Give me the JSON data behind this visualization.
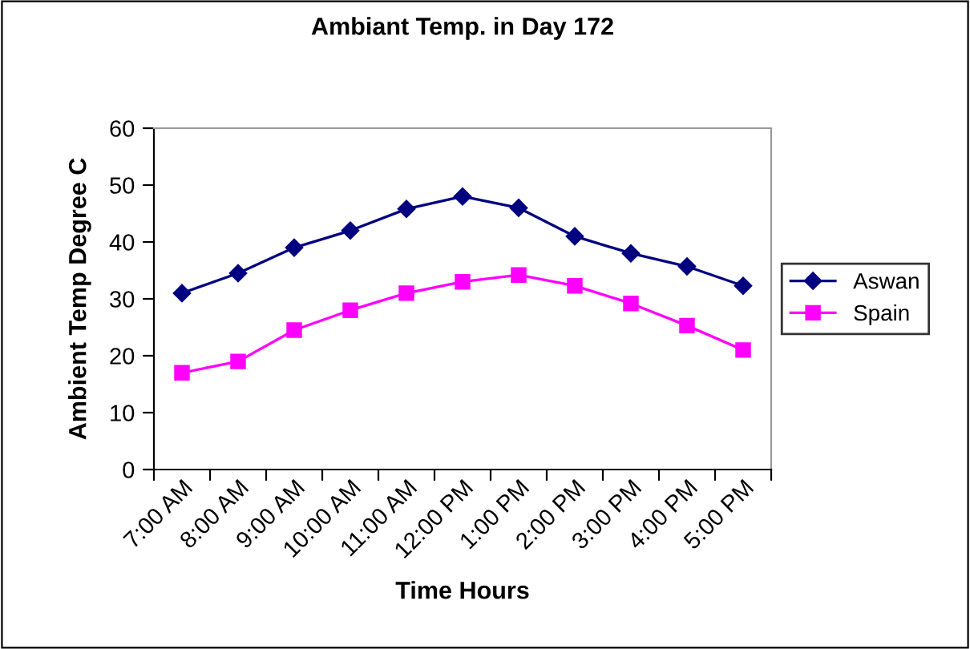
{
  "chart_data": {
    "type": "line",
    "title": "Ambiant Temp. in Day 172",
    "xlabel": "Time Hours",
    "ylabel": "Ambient Temp Degree C",
    "categories": [
      "7:00 AM",
      "8:00 AM",
      "9:00 AM",
      "10:00 AM",
      "11:00 AM",
      "12:00 PM",
      "1:00 PM",
      "2:00 PM",
      "3:00 PM",
      "4:00 PM",
      "5:00 PM"
    ],
    "series": [
      {
        "name": "Aswan",
        "color": "#000080",
        "marker": "diamond",
        "values": [
          31,
          34.5,
          39,
          42,
          45.8,
          48,
          46,
          41,
          38,
          35.7,
          32.3
        ]
      },
      {
        "name": "Spain",
        "color": "#ff00ff",
        "marker": "square",
        "values": [
          17,
          19,
          24.5,
          28,
          31,
          33,
          34.2,
          32.3,
          29.2,
          25.3,
          21
        ]
      }
    ],
    "ylim": [
      0,
      60
    ],
    "yticks": [
      0,
      10,
      20,
      30,
      40,
      50,
      60
    ],
    "grid": false,
    "legend": "right"
  }
}
